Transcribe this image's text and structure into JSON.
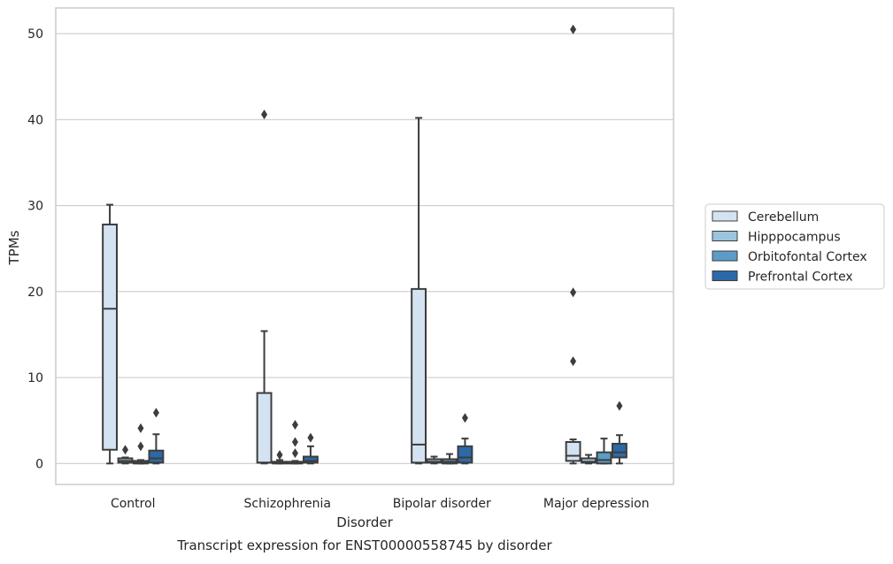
{
  "chart_data": {
    "type": "box",
    "xlabel": "Disorder",
    "ylabel": "TPMs",
    "caption": "Transcript expression for ENST00000558745 by disorder",
    "ylim": [
      -2.5,
      53
    ],
    "yticks": [
      0,
      10,
      20,
      30,
      40,
      50
    ],
    "grid": "horizontal",
    "legend_position": "right",
    "categories": [
      "Control",
      "Schizophrenia",
      "Bipolar disorder",
      "Major depression"
    ],
    "series": [
      {
        "name": "Cerebellum",
        "color": "#d4e3f2",
        "boxes": [
          {
            "whisker_low": 0,
            "q1": 1.6,
            "median": 18.0,
            "q3": 27.8,
            "whisker_high": 30.1,
            "outliers": []
          },
          {
            "whisker_low": 0,
            "q1": 0.1,
            "median": 0.1,
            "q3": 8.2,
            "whisker_high": 15.4,
            "outliers": [
              40.6
            ]
          },
          {
            "whisker_low": 0,
            "q1": 0.1,
            "median": 2.2,
            "q3": 20.3,
            "whisker_high": 40.2,
            "outliers": []
          },
          {
            "whisker_low": 0,
            "q1": 0.3,
            "median": 0.9,
            "q3": 2.5,
            "whisker_high": 2.8,
            "outliers": [
              11.9,
              19.9,
              50.5
            ]
          }
        ]
      },
      {
        "name": "Hipppocampus",
        "color": "#9bc4df",
        "boxes": [
          {
            "whisker_low": 0,
            "q1": 0.1,
            "median": 0.3,
            "q3": 0.6,
            "whisker_high": 0.7,
            "outliers": [
              1.6
            ]
          },
          {
            "whisker_low": 0,
            "q1": 0.0,
            "median": 0.1,
            "q3": 0.2,
            "whisker_high": 0.4,
            "outliers": [
              1.0
            ]
          },
          {
            "whisker_low": 0,
            "q1": 0.1,
            "median": 0.2,
            "q3": 0.5,
            "whisker_high": 0.8,
            "outliers": []
          },
          {
            "whisker_low": 0,
            "q1": 0.1,
            "median": 0.2,
            "q3": 0.6,
            "whisker_high": 1.0,
            "outliers": []
          }
        ]
      },
      {
        "name": "Orbitofontal Cortex",
        "color": "#5b9cc8",
        "boxes": [
          {
            "whisker_low": 0,
            "q1": 0.0,
            "median": 0.1,
            "q3": 0.3,
            "whisker_high": 0.4,
            "outliers": [
              2.0,
              4.1
            ]
          },
          {
            "whisker_low": 0,
            "q1": 0.0,
            "median": 0.1,
            "q3": 0.2,
            "whisker_high": 0.3,
            "outliers": [
              1.2,
              2.5,
              4.5
            ]
          },
          {
            "whisker_low": 0,
            "q1": 0.0,
            "median": 0.2,
            "q3": 0.5,
            "whisker_high": 1.1,
            "outliers": []
          },
          {
            "whisker_low": 0,
            "q1": 0.0,
            "median": 0.4,
            "q3": 1.3,
            "whisker_high": 2.9,
            "outliers": []
          }
        ]
      },
      {
        "name": "Prefrontal Cortex",
        "color": "#2c69a8",
        "boxes": [
          {
            "whisker_low": 0,
            "q1": 0.1,
            "median": 0.6,
            "q3": 1.5,
            "whisker_high": 3.4,
            "outliers": [
              5.9
            ]
          },
          {
            "whisker_low": 0,
            "q1": 0.1,
            "median": 0.3,
            "q3": 0.8,
            "whisker_high": 2.0,
            "outliers": [
              3.0
            ]
          },
          {
            "whisker_low": 0,
            "q1": 0.1,
            "median": 0.7,
            "q3": 2.0,
            "whisker_high": 2.9,
            "outliers": [
              5.3
            ]
          },
          {
            "whisker_low": 0,
            "q1": 0.7,
            "median": 1.3,
            "q3": 2.3,
            "whisker_high": 3.3,
            "outliers": [
              6.7
            ]
          }
        ]
      }
    ]
  }
}
